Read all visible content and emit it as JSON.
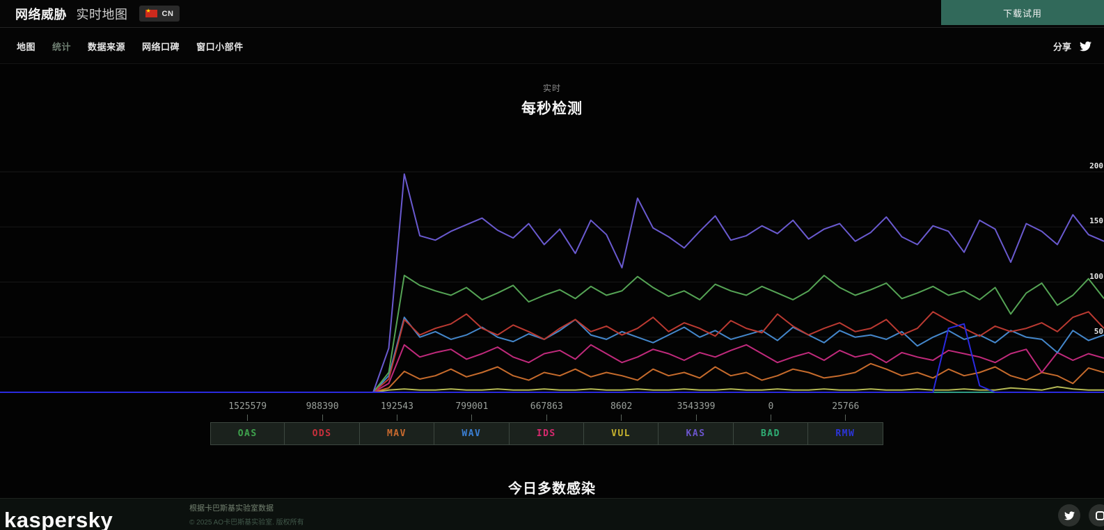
{
  "header": {
    "title_bold": "网络威胁",
    "title_light": "实时地图",
    "country_code": "CN",
    "download_button": "下载试用"
  },
  "nav": {
    "items": [
      {
        "label": "地图",
        "active": false
      },
      {
        "label": "统计",
        "active": true
      },
      {
        "label": "数据来源",
        "active": false
      },
      {
        "label": "网络口碑",
        "active": false
      },
      {
        "label": "窗口小部件",
        "active": false
      }
    ],
    "share_label": "分享"
  },
  "chart": {
    "subtitle": "实时",
    "title": "每秒检测",
    "ytick_labels": [
      {
        "label": "200",
        "value": 200
      },
      {
        "label": "150",
        "value": 150
      },
      {
        "label": "100",
        "value": 100
      },
      {
        "label": "50",
        "value": 50
      }
    ]
  },
  "chart_data": {
    "type": "line",
    "title": "每秒检测",
    "subtitle": "实时",
    "ylim": [
      0,
      200
    ],
    "yticks": [
      0,
      50,
      100,
      150,
      200
    ],
    "grid": true,
    "grid_color": "#181818",
    "legend_position": "bottom",
    "n_points": 72,
    "series": [
      {
        "name": "OAS",
        "color": "#55a455",
        "total_today": "1525579",
        "pre_zeros": 25,
        "values": [
          18,
          106,
          97,
          92,
          88,
          95,
          84,
          90,
          97,
          82,
          88,
          93,
          85,
          96,
          88,
          92,
          105,
          95,
          87,
          92,
          84,
          98,
          92,
          88,
          96,
          90,
          84,
          92,
          106,
          95,
          88,
          93,
          99,
          85,
          90,
          96,
          88,
          92,
          84,
          95,
          71,
          90,
          99,
          79,
          88,
          103,
          85
        ]
      },
      {
        "name": "ODS",
        "color": "#bb3a32",
        "total_today": "988390",
        "pre_zeros": 25,
        "values": [
          12,
          66,
          52,
          58,
          62,
          71,
          58,
          52,
          61,
          55,
          48,
          58,
          66,
          55,
          60,
          52,
          58,
          68,
          55,
          63,
          58,
          51,
          65,
          58,
          54,
          71,
          60,
          52,
          58,
          63,
          55,
          58,
          66,
          52,
          58,
          73,
          65,
          58,
          51,
          60,
          55,
          58,
          63,
          55,
          68,
          73,
          58
        ]
      },
      {
        "name": "MAV",
        "color": "#c66b2c",
        "total_today": "192543",
        "pre_zeros": 25,
        "values": [
          4,
          19,
          12,
          15,
          21,
          14,
          18,
          23,
          15,
          11,
          18,
          15,
          21,
          14,
          18,
          15,
          11,
          21,
          15,
          18,
          13,
          23,
          15,
          18,
          11,
          15,
          21,
          18,
          13,
          15,
          18,
          26,
          21,
          15,
          18,
          13,
          21,
          15,
          18,
          23,
          15,
          11,
          18,
          15,
          8,
          22,
          18
        ]
      },
      {
        "name": "WAV",
        "color": "#4487cb",
        "total_today": "799001",
        "pre_zeros": 25,
        "values": [
          15,
          68,
          50,
          55,
          48,
          52,
          59,
          50,
          46,
          53,
          48,
          56,
          66,
          52,
          48,
          55,
          50,
          45,
          52,
          59,
          50,
          56,
          48,
          52,
          56,
          47,
          59,
          52,
          45,
          56,
          50,
          52,
          48,
          55,
          42,
          50,
          56,
          48,
          52,
          45,
          56,
          50,
          48,
          36,
          56,
          47,
          52
        ]
      },
      {
        "name": "IDS",
        "color": "#c02a7c",
        "total_today": "667863",
        "pre_zeros": 25,
        "values": [
          8,
          43,
          32,
          36,
          39,
          30,
          35,
          41,
          32,
          27,
          35,
          38,
          30,
          43,
          35,
          27,
          32,
          39,
          35,
          29,
          36,
          32,
          38,
          43,
          35,
          27,
          32,
          36,
          29,
          38,
          32,
          35,
          27,
          36,
          32,
          29,
          38,
          35,
          32,
          27,
          35,
          39,
          18,
          36,
          29,
          35,
          31
        ]
      },
      {
        "name": "VUL",
        "color": "#b5b955",
        "total_today": "8602",
        "pre_zeros": 25,
        "values": [
          2,
          3,
          2,
          2,
          3,
          2,
          2,
          3,
          2,
          2,
          3,
          2,
          2,
          3,
          2,
          2,
          3,
          2,
          2,
          3,
          2,
          2,
          3,
          2,
          2,
          3,
          2,
          2,
          3,
          2,
          2,
          3,
          2,
          2,
          3,
          2,
          2,
          3,
          2,
          2,
          4,
          3,
          2,
          5,
          3,
          2,
          2
        ]
      },
      {
        "name": "KAS",
        "color": "#6a5ad0",
        "total_today": "3543399",
        "pre_zeros": 25,
        "values": [
          40,
          198,
          142,
          138,
          146,
          152,
          158,
          147,
          140,
          153,
          134,
          148,
          126,
          156,
          143,
          113,
          176,
          149,
          141,
          131,
          146,
          160,
          138,
          142,
          151,
          144,
          156,
          139,
          148,
          153,
          137,
          145,
          159,
          141,
          134,
          151,
          146,
          127,
          156,
          148,
          118,
          153,
          146,
          134,
          161,
          143,
          137
        ]
      },
      {
        "name": "BAD",
        "color": "#2f9c86",
        "total_today": "0",
        "pre_zeros": 72,
        "values": []
      },
      {
        "name": "RMW",
        "color": "#2a2ae0",
        "total_today": "25766",
        "pre_zeros": 61,
        "values": [
          58,
          62,
          6
        ]
      }
    ]
  },
  "legend": [
    {
      "code": "OAS",
      "value": "1525579",
      "color": "#3fa34d"
    },
    {
      "code": "ODS",
      "value": "988390",
      "color": "#c9303c"
    },
    {
      "code": "MAV",
      "value": "192543",
      "color": "#c96a2e"
    },
    {
      "code": "WAV",
      "value": "799001",
      "color": "#3b7fd4"
    },
    {
      "code": "IDS",
      "value": "667863",
      "color": "#d62a6e"
    },
    {
      "code": "VUL",
      "value": "8602",
      "color": "#c8b42e"
    },
    {
      "code": "KAS",
      "value": "3543399",
      "color": "#6b55cc"
    },
    {
      "code": "BAD",
      "value": "0",
      "color": "#2fae74"
    },
    {
      "code": "RMW",
      "value": "25766",
      "color": "#2c35d8"
    }
  ],
  "section": {
    "title": "今日多数感染"
  },
  "footer": {
    "logo": "kaspersky",
    "line1": "根据卡巴斯基实验室数据",
    "line2": "© 2025 AO卡巴斯基实验室. 版权所有"
  }
}
